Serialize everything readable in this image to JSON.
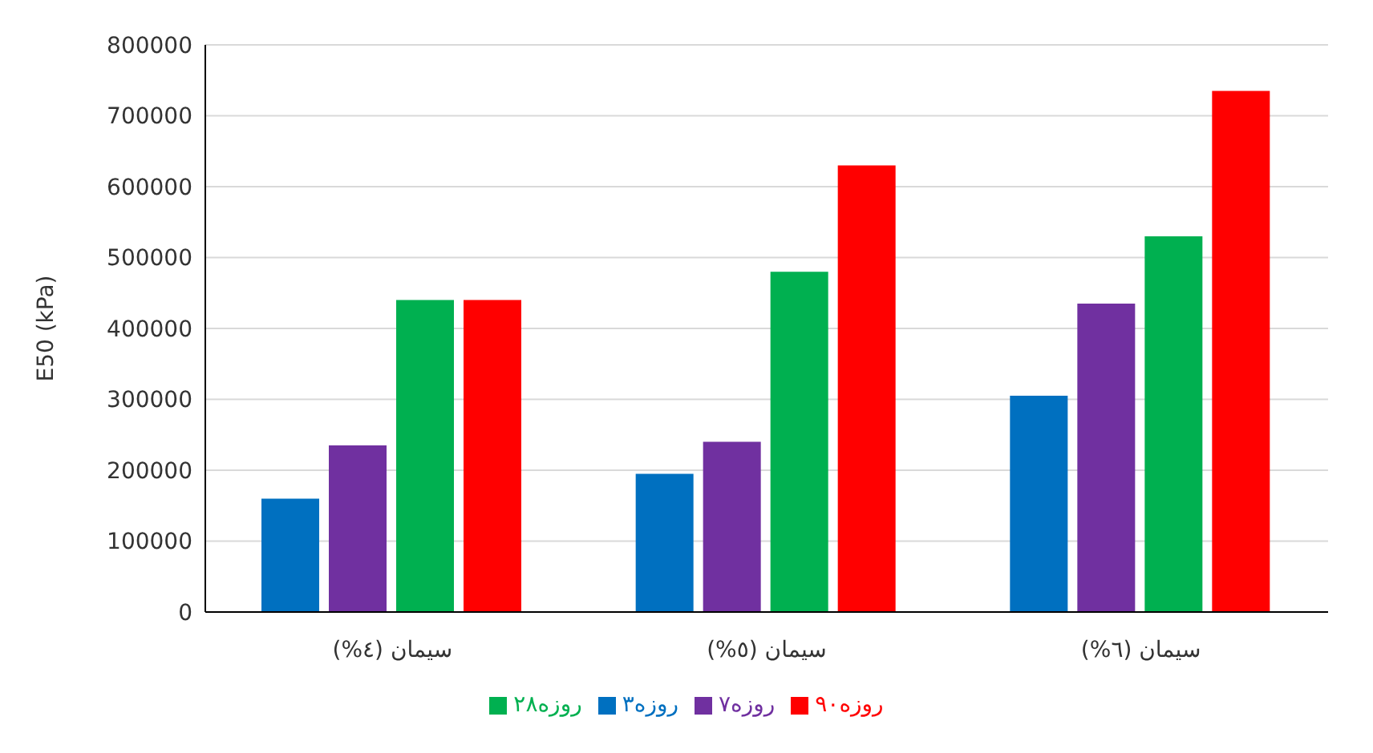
{
  "chart_data": {
    "type": "bar",
    "ylabel": "E50 (kPa)",
    "categories": [
      "سیمان (٤%)",
      "سیمان (٥%)",
      "سیمان (٦%)"
    ],
    "series": [
      {
        "name": "۳روزه",
        "color": "#0070c0",
        "values": [
          160000,
          195000,
          305000
        ]
      },
      {
        "name": "۷روزه",
        "color": "#7030a0",
        "values": [
          235000,
          240000,
          435000
        ]
      },
      {
        "name": "۲۸روزه",
        "color": "#00b050",
        "values": [
          440000,
          480000,
          530000
        ]
      },
      {
        "name": "۹۰روزه",
        "color": "#ff0000",
        "values": [
          440000,
          630000,
          735000
        ]
      }
    ],
    "ylim": [
      0,
      800000
    ],
    "yticks": [
      0,
      100000,
      200000,
      300000,
      400000,
      500000,
      600000,
      700000,
      800000
    ],
    "grid": "y",
    "legend": "bottom"
  }
}
